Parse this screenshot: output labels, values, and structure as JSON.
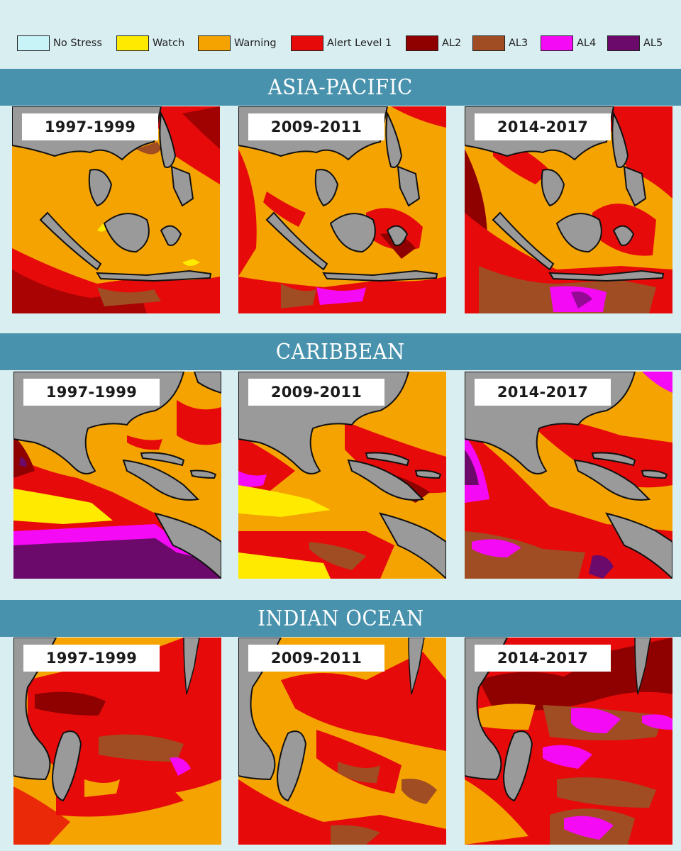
{
  "legend": [
    {
      "label": "No Stress",
      "color": "#c8f4f7"
    },
    {
      "label": "Watch",
      "color": "#ffea00"
    },
    {
      "label": "Warning",
      "color": "#f5a300"
    },
    {
      "label": "Alert Level 1",
      "color": "#e60a0a"
    },
    {
      "label": "AL2",
      "color": "#8f0000"
    },
    {
      "label": "AL3",
      "color": "#a04d24"
    },
    {
      "label": "AL4",
      "color": "#f50af5"
    },
    {
      "label": "AL5",
      "color": "#6b0a6b"
    }
  ],
  "regions": [
    {
      "title": "ASIA-PACIFIC",
      "periods": [
        "1997-1999",
        "2009-2011",
        "2014-2017"
      ]
    },
    {
      "title": "CARIBBEAN",
      "periods": [
        "1997-1999",
        "2009-2011",
        "2014-2017"
      ]
    },
    {
      "title": "INDIAN OCEAN",
      "periods": [
        "1997-1999",
        "2009-2011",
        "2014-2017"
      ]
    }
  ],
  "colors": {
    "background": "#d9eef1",
    "banner": "#4892ad",
    "land": "#9a9a9a",
    "coastline": "#111111"
  }
}
